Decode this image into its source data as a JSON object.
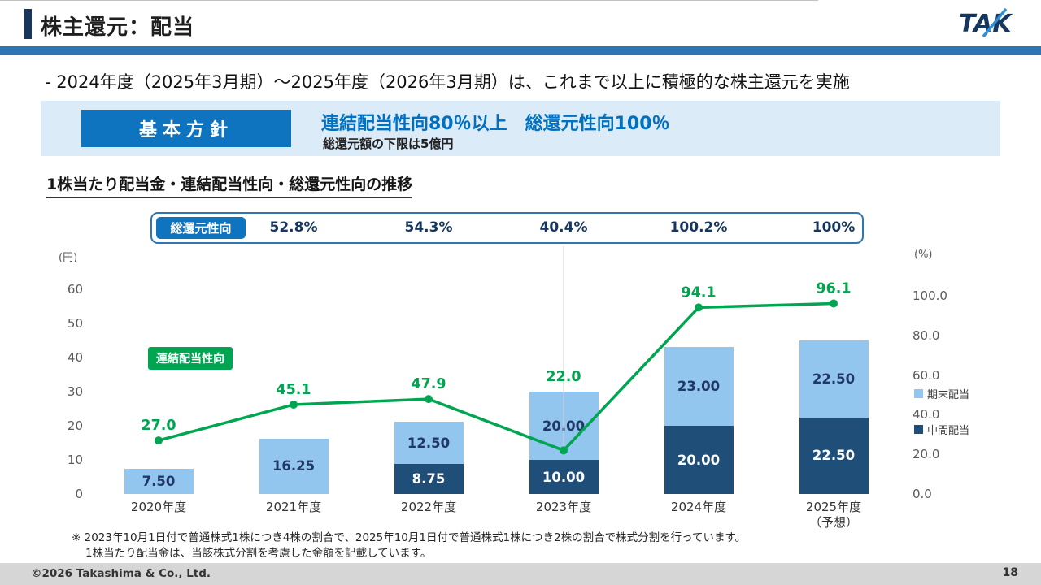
{
  "header": {
    "title": "株主還元：配当",
    "logo_text": "TAK"
  },
  "lead": "- 2024年度（2025年3月期）～2025年度（2026年3月期）は、これまで以上に積極的な株主還元を実施",
  "policy": {
    "label": "基本方針",
    "headline": "連結配当性向80％以上　総還元性向100％",
    "note": "総還元額の下限は5億円"
  },
  "section_heading": "1株当たり配当金・連結配当性向・総還元性向の推移",
  "chart_data": {
    "type": "bar",
    "title": "1株当たり配当金・連結配当性向・総還元性向の推移",
    "categories": [
      "2020年度",
      "2021年度",
      "2022年度",
      "2023年度",
      "2024年度",
      "2025年度\n（予想）"
    ],
    "unit_left": "(円)",
    "unit_right": "(%)",
    "left_axis": {
      "min": 0,
      "max": 60,
      "step": 10
    },
    "right_axis": {
      "min": 0,
      "max": 100,
      "step": 20,
      "labels": [
        "0.0",
        "20.0",
        "40.0",
        "60.0",
        "80.0",
        "100.0"
      ]
    },
    "series": [
      {
        "name": "中間配当",
        "type": "bar-stack",
        "color": "#1f4e79",
        "label_color": "#ffffff",
        "values": [
          null,
          null,
          8.75,
          10.0,
          20.0,
          22.5
        ]
      },
      {
        "name": "期末配当",
        "type": "bar-stack",
        "color": "#93c6ef",
        "label_color": "#1f3864",
        "values": [
          7.5,
          16.25,
          12.5,
          20.0,
          23.0,
          22.5
        ]
      },
      {
        "name": "連結配当性向",
        "type": "line",
        "color": "#00a551",
        "values": [
          27.0,
          45.1,
          47.9,
          22.0,
          94.1,
          96.1
        ]
      }
    ],
    "total_return_ratio": {
      "label": "総還元性向",
      "values": [
        null,
        "52.8%",
        "54.3%",
        "40.4%",
        "100.2%",
        "100%"
      ]
    },
    "legend": {
      "final": "期末配当",
      "interim": "中間配当"
    },
    "legend_position": "right",
    "grid": false
  },
  "footnote": {
    "line1": "※ 2023年10月1日付で普通株式1株につき4株の割合で、2025年10月1日付で普通株式1株につき2株の割合で株式分割を行っています。",
    "line2": "1株当たり配当金は、当該株式分割を考慮した金額を記載しています。"
  },
  "footer": {
    "copyright": "©2026 Takashima & Co., Ltd.",
    "page_number": "18"
  }
}
